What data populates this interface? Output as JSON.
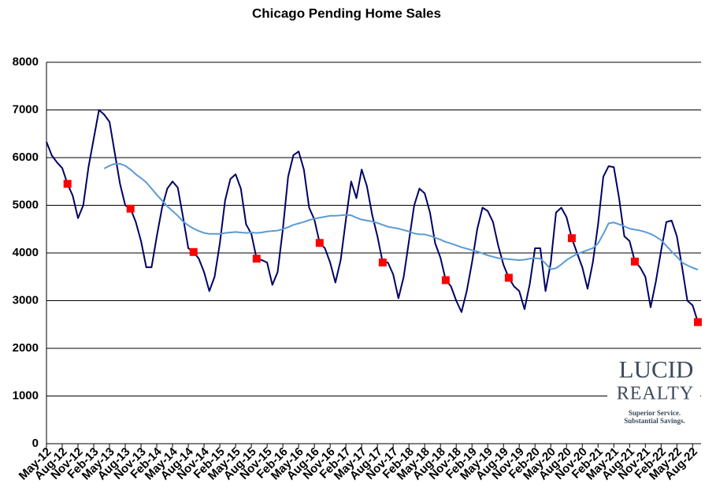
{
  "chart_data": {
    "type": "line",
    "title": "Chicago Pending Home Sales",
    "categories": [
      "May-12",
      null,
      null,
      "Aug-12",
      null,
      null,
      "Nov-12",
      null,
      null,
      "Feb-13",
      null,
      null,
      "May-13",
      null,
      null,
      "Aug-13",
      null,
      null,
      "Nov-13",
      null,
      null,
      "Feb-14",
      null,
      null,
      "May-14",
      null,
      null,
      "Aug-14",
      null,
      null,
      "Nov-14",
      null,
      null,
      "Feb-15",
      null,
      null,
      "May-15",
      null,
      null,
      "Aug-15",
      null,
      null,
      "Nov-15",
      null,
      null,
      "Feb-16",
      null,
      null,
      "May-16",
      null,
      null,
      "Aug-16",
      null,
      null,
      "Nov-16",
      null,
      null,
      "Feb-17",
      null,
      null,
      "May-17",
      null,
      null,
      "Aug-17",
      null,
      null,
      "Nov-17",
      null,
      null,
      "Feb-18",
      null,
      null,
      "May-18",
      null,
      null,
      "Aug-18",
      null,
      null,
      "Nov-18",
      null,
      null,
      "Feb-19",
      null,
      null,
      "May-19",
      null,
      null,
      "Aug-19",
      null,
      null,
      "Nov-19",
      null,
      null,
      "Feb-20",
      null,
      null,
      "May-20",
      null,
      null,
      "Aug-20",
      null,
      null,
      "Nov-20",
      null,
      null,
      "Feb-21",
      null,
      null,
      "May-21",
      null,
      null,
      "Aug-21",
      null,
      null,
      "Nov-21",
      null,
      null,
      "Feb-22",
      null,
      null,
      "May-22",
      null,
      null,
      "Aug-22",
      null
    ],
    "series": [
      {
        "color": "#000066",
        "values": [
          6330,
          6050,
          5900,
          5780,
          5450,
          5200,
          4730,
          5000,
          5800,
          6400,
          7000,
          6900,
          6750,
          6100,
          5450,
          5000,
          4930,
          4650,
          4250,
          3700,
          3700,
          4350,
          4950,
          5350,
          5500,
          5370,
          4750,
          4100,
          4020,
          3880,
          3600,
          3200,
          3500,
          4200,
          5100,
          5550,
          5650,
          5350,
          4600,
          4400,
          3880,
          3850,
          3800,
          3330,
          3600,
          4500,
          5600,
          6050,
          6130,
          5750,
          4950,
          4700,
          4210,
          4100,
          3800,
          3380,
          3850,
          4700,
          5500,
          5150,
          5750,
          5400,
          4800,
          4350,
          3800,
          3800,
          3550,
          3050,
          3500,
          4250,
          5000,
          5350,
          5250,
          4850,
          4200,
          3900,
          3430,
          3300,
          3000,
          2760,
          3200,
          3800,
          4500,
          4950,
          4880,
          4650,
          4150,
          3750,
          3480,
          3300,
          3200,
          2820,
          3350,
          4100,
          4100,
          3200,
          3800,
          4850,
          4950,
          4750,
          4310,
          4000,
          3700,
          3250,
          3800,
          4600,
          5600,
          5820,
          5800,
          5150,
          4350,
          4250,
          3820,
          3700,
          3500,
          2860,
          3400,
          4050,
          4650,
          4680,
          4350,
          3700,
          3000,
          2900,
          2550
        ]
      },
      {
        "color": "#5b9bd5",
        "values": [
          null,
          null,
          null,
          null,
          null,
          null,
          null,
          null,
          null,
          null,
          null,
          5770,
          5830,
          5870,
          5870,
          5830,
          5750,
          5650,
          5570,
          5480,
          5350,
          5220,
          5100,
          4980,
          4880,
          4780,
          4660,
          4580,
          4510,
          4460,
          4420,
          4400,
          4400,
          4400,
          4420,
          4430,
          4440,
          4430,
          4420,
          4430,
          4420,
          4430,
          4450,
          4460,
          4470,
          4500,
          4540,
          4590,
          4620,
          4650,
          4690,
          4720,
          4740,
          4760,
          4780,
          4780,
          4790,
          4800,
          4790,
          4740,
          4700,
          4680,
          4660,
          4630,
          4590,
          4550,
          4530,
          4510,
          4480,
          4450,
          4410,
          4390,
          4390,
          4360,
          4320,
          4280,
          4230,
          4200,
          4160,
          4120,
          4090,
          4060,
          4030,
          3990,
          3950,
          3920,
          3890,
          3880,
          3870,
          3860,
          3850,
          3860,
          3880,
          3890,
          3880,
          3780,
          3660,
          3680,
          3760,
          3850,
          3920,
          3980,
          4020,
          4060,
          4100,
          4200,
          4400,
          4620,
          4640,
          4600,
          4560,
          4510,
          4490,
          4470,
          4440,
          4400,
          4340,
          4270,
          4150,
          4030,
          3920,
          3800,
          3740,
          3690,
          3650
        ]
      }
    ],
    "highlight_indices": [
      4,
      16,
      28,
      40,
      52,
      64,
      76,
      88,
      100,
      112,
      124
    ],
    "highlight_color": "#ff0000",
    "ylim": [
      0,
      8000
    ],
    "yticks": [
      0,
      1000,
      2000,
      3000,
      4000,
      5000,
      6000,
      7000,
      8000
    ],
    "grid": true,
    "logo": {
      "line1": "LUCID",
      "line2": "REALTY",
      "tagline1": "Superior Service.",
      "tagline2": "Substantial Savings."
    }
  }
}
